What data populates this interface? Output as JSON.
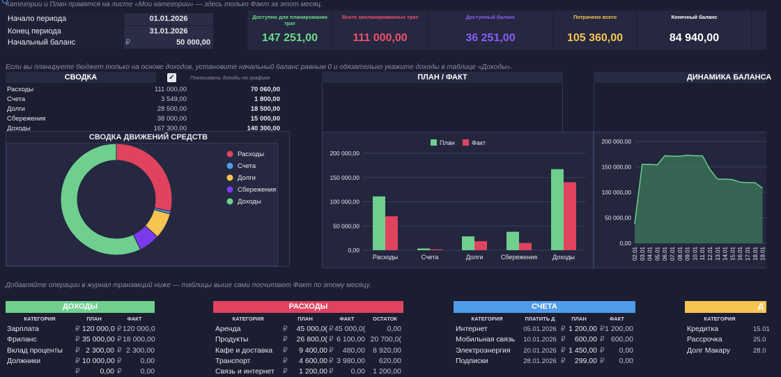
{
  "top_note": "Категории и План правятся на листе «Мои категории» — здесь только Факт за этот месяц.",
  "period": {
    "start_label": "Начало периода",
    "start_value": "01.01.2026",
    "end_label": "Конец периода",
    "end_value": "31.01.2026",
    "balance_label": "Начальный баланс",
    "balance_currency": "₽",
    "balance_value": "50 000,00"
  },
  "kpis": [
    {
      "label": "Доступно для планирования трат",
      "value": "147 251,00",
      "color": "#6fdc8c"
    },
    {
      "label": "Всего запланированных трат",
      "value": "111 000,00",
      "color": "#f0506e"
    },
    {
      "label": "Доступный баланс",
      "value": "36 251,00",
      "color": "#8b5cf6"
    },
    {
      "label": "Потрачено всего",
      "value": "105 360,00",
      "color": "#f5c451"
    },
    {
      "label": "Конечный баланс",
      "value": "84 940,00",
      "color": "#ffffff"
    }
  ],
  "mid_note": "Если вы планируете бюджет только на основе доходов, установите начальный баланс равным 0 и обязательно укажите доходы в таблице «Доходы».",
  "summary": {
    "title": "СВОДКА",
    "checkbox_label": "Показывать доходы на графике",
    "rows": [
      {
        "name": "Расходы",
        "plan": "111 000,00",
        "fact": "70 060,00"
      },
      {
        "name": "Счета",
        "plan": "3 549,00",
        "fact": "1 800,00"
      },
      {
        "name": "Долги",
        "plan": "28 500,00",
        "fact": "18 500,00"
      },
      {
        "name": "Сбережения",
        "plan": "38 000,00",
        "fact": "15 000,00"
      },
      {
        "name": "Доходы",
        "plan": "167 300,00",
        "fact": "140 300,00"
      }
    ]
  },
  "flow": {
    "title": "СВОДКА ДВИЖЕНИЙ СРЕДСТВ",
    "legend": [
      {
        "name": "Расходы",
        "color": "#e0435f"
      },
      {
        "name": "Счета",
        "color": "#4f9be8"
      },
      {
        "name": "Долги",
        "color": "#f5c451"
      },
      {
        "name": "Сбережения",
        "color": "#7c3aed"
      },
      {
        "name": "Доходы",
        "color": "#6fcf8f"
      }
    ]
  },
  "planfact": {
    "title": "ПЛАН / ФАКТ",
    "legend_plan": "План",
    "legend_fact": "Факт"
  },
  "dynamics": {
    "title": "ДИНАМИКА БАЛАНСА"
  },
  "chart_data": [
    {
      "type": "pie",
      "title": "СВОДКА ДВИЖЕНИЙ СРЕДСТВ",
      "categories": [
        "Расходы",
        "Счета",
        "Долги",
        "Сбережения",
        "Доходы"
      ],
      "values": [
        70060,
        1800,
        18500,
        15000,
        140300
      ],
      "colors": [
        "#e0435f",
        "#4f9be8",
        "#f5c451",
        "#7c3aed",
        "#6fcf8f"
      ],
      "legend": "right"
    },
    {
      "type": "bar",
      "title": "ПЛАН / ФАКТ",
      "categories": [
        "Расходы",
        "Счета",
        "Долги",
        "Сбережения",
        "Доходы"
      ],
      "series": [
        {
          "name": "План",
          "values": [
            111000,
            3549,
            28500,
            38000,
            167300
          ],
          "color": "#6fcf8f"
        },
        {
          "name": "Факт",
          "values": [
            70060,
            1800,
            18500,
            15000,
            140300
          ],
          "color": "#e0435f"
        }
      ],
      "ylim": [
        0,
        200000
      ],
      "yticks": [
        "0,00",
        "50 000,00",
        "100 000,00",
        "150 000,00",
        "200 000,00"
      ],
      "legend": "top",
      "grid": true
    },
    {
      "type": "area",
      "title": "ДИНАМИКА БАЛАНСА",
      "x": [
        "02.01",
        "03.01",
        "04.01",
        "05.01",
        "06.01",
        "07.01",
        "08.01",
        "09.01",
        "10.01",
        "11.01",
        "12.01",
        "13.01",
        "14.01",
        "15.01",
        "16.01",
        "17.01",
        "18.01",
        "19.01"
      ],
      "values": [
        38000,
        155000,
        155000,
        154000,
        172000,
        171000,
        171000,
        173000,
        172000,
        172000,
        145000,
        126000,
        126000,
        125000,
        120000,
        119000,
        119000,
        108000
      ],
      "ylim": [
        0,
        200000
      ],
      "yticks": [
        "0,00",
        "50 000,00",
        "100 000,00",
        "150 000,00",
        "200 000,00"
      ],
      "color": "#6fcf8f",
      "grid": true
    }
  ],
  "bottom_note": "Добавляйте операции в журнал транзакций ниже — таблицы выше сами посчитают Факт по этому месяцу.",
  "incomes": {
    "title": "ДОХОДЫ",
    "color": "#6fcf8f",
    "headers": [
      "КАТЕГОРИЯ",
      "ПЛАН",
      "ФАКТ"
    ],
    "rows": [
      {
        "cat": "Зарплата",
        "cur": "₽",
        "plan": "120 000,0",
        "fact": "120 000,0"
      },
      {
        "cat": "Фриланс",
        "cur": "₽",
        "plan": "35 000,00",
        "fact": "18 000,00"
      },
      {
        "cat": "Вклад проценты",
        "cur": "₽",
        "plan": "2 300,00",
        "fact": "2 300,00"
      },
      {
        "cat": "Должники",
        "cur": "₽",
        "plan": "10 000,00",
        "fact": "0,00"
      },
      {
        "cat": "",
        "cur": "₽",
        "plan": "0,00",
        "fact": "0,00"
      }
    ]
  },
  "expenses": {
    "title": "РАСХОДЫ",
    "color": "#e0435f",
    "headers": [
      "КАТЕГОРИЯ",
      "ПЛАН",
      "ФАКТ",
      "ОСТАТОК"
    ],
    "rows": [
      {
        "cat": "Аренда",
        "cur": "₽",
        "plan": "45 000,0(",
        "fact": "45 000,0(",
        "rest": "0,00"
      },
      {
        "cat": "Продукты",
        "cur": "₽",
        "plan": "26 800,0(",
        "fact": "6 100,00",
        "rest": "20 700,0("
      },
      {
        "cat": "Кафе и доставка",
        "cur": "₽",
        "plan": "9 400,00",
        "fact": "480,00",
        "rest": "8 920,00"
      },
      {
        "cat": "Транспорт",
        "cur": "₽",
        "plan": "4 600,00",
        "fact": "3 980,00",
        "rest": "620,00"
      },
      {
        "cat": "Связь и интернет",
        "cur": "₽",
        "plan": "1 200,00",
        "fact": "0,00",
        "rest": "1 200,00"
      }
    ]
  },
  "bills": {
    "title": "СЧЕТА",
    "color": "#4f9be8",
    "headers": [
      "КАТЕГОРИЯ",
      "ПЛАТИТЬ Д",
      "ПЛАН",
      "ФАКТ"
    ],
    "rows": [
      {
        "cat": "Интернет",
        "date": "05.01.2026",
        "cur": "₽",
        "plan": "1 200,00",
        "fact": "1 200,00"
      },
      {
        "cat": "Мобильная связь",
        "date": "10.01.2026",
        "cur": "₽",
        "plan": "600,00",
        "fact": "600,00"
      },
      {
        "cat": "Электроэнергия",
        "date": "20.01.2026",
        "cur": "₽",
        "plan": "1 450,00",
        "fact": "0,00"
      },
      {
        "cat": "Подписки",
        "date": "28.01.2026",
        "cur": "₽",
        "plan": "299,00",
        "fact": "0,00"
      }
    ]
  },
  "debts": {
    "title": "Д",
    "color": "#f5c451",
    "headers": [
      "КАТЕГОРИЯ"
    ],
    "rows": [
      {
        "cat": "Кредитка",
        "date": "15.01"
      },
      {
        "cat": "Рассрочка",
        "date": "25.0"
      },
      {
        "cat": "Долг Макару",
        "date": "28.0"
      }
    ]
  }
}
